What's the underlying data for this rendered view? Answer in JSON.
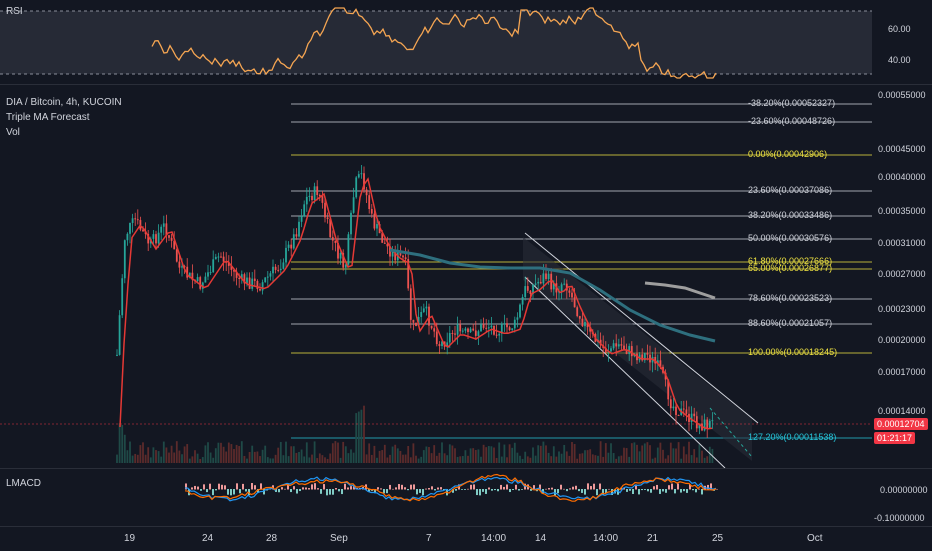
{
  "rsi": {
    "label": "RSI",
    "ticks": [
      "60.00",
      "40.00"
    ],
    "colors": {
      "line": "#f5a552",
      "band": "#2a2e39"
    }
  },
  "symbol": {
    "title": "DIA / Bitcoin, 4h, KUCOIN",
    "indicator1": "Triple MA Forecast",
    "indicator2": "Vol"
  },
  "price_axis": {
    "ticks": [
      "0.00055000",
      "0.00045000",
      "0.00040000",
      "0.00035000",
      "0.00031000",
      "0.00027000",
      "0.00023000",
      "0.00020000",
      "0.00017000",
      "0.00014000"
    ],
    "last_price": "0.00012704",
    "countdown": "01:21:17"
  },
  "fib_levels": [
    {
      "label": "-38.20%(0.00052327)",
      "color": "#d1d4dc"
    },
    {
      "label": "-23.60%(0.00048726)",
      "color": "#d1d4dc"
    },
    {
      "label": "0.00%(0.00042906)",
      "color": "#f0e442"
    },
    {
      "label": "23.60%(0.00037086)",
      "color": "#d1d4dc"
    },
    {
      "label": "38.20%(0.00033486)",
      "color": "#d1d4dc"
    },
    {
      "label": "50.00%(0.00030576)",
      "color": "#d1d4dc"
    },
    {
      "label": "61.80%(0.00027666)",
      "color": "#f0e442"
    },
    {
      "label": "65.00%(0.00026877)",
      "color": "#f0e442"
    },
    {
      "label": "78.60%(0.00023523)",
      "color": "#d1d4dc"
    },
    {
      "label": "88.60%(0.00021057)",
      "color": "#d1d4dc"
    },
    {
      "label": "100.00%(0.00018245)",
      "color": "#f0e442"
    },
    {
      "label": "127.20%(0.00011538)",
      "color": "#26c6da"
    }
  ],
  "macd": {
    "label": "LMACD",
    "ticks": [
      "0.00000000",
      "-0.10000000"
    ]
  },
  "time_axis": {
    "labels": [
      "19",
      "24",
      "28",
      "Sep",
      "7",
      "14:00",
      "14",
      "14:00",
      "21",
      "25",
      "Oct"
    ]
  },
  "colors": {
    "background": "#131722",
    "bull": "#26a69a",
    "bear": "#ef5350",
    "ma_red": "#e53935",
    "ma_teal": "#2e6f7e",
    "ma_grey": "#9e9e9e",
    "last_price": "#f23645",
    "fib_yellow": "#f0e442",
    "fib_cyan": "#26c6da"
  }
}
